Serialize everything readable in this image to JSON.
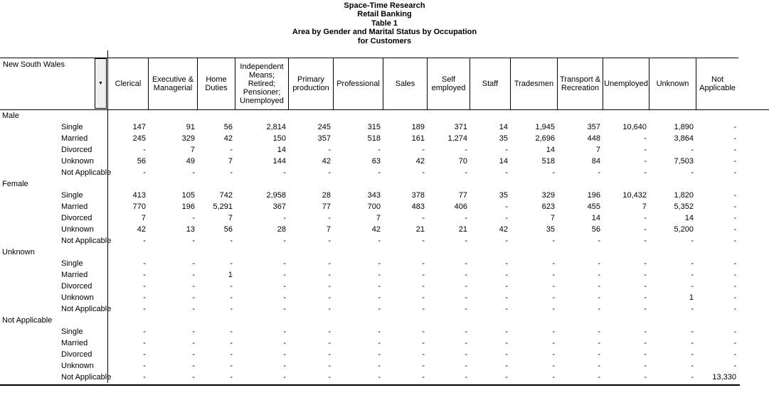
{
  "title": {
    "lines": [
      "Space-Time Research",
      "Retail Banking",
      "Table 1",
      "Area by Gender and Marital Status by Occupation",
      "for Customers"
    ]
  },
  "table": {
    "row_field_label": "New South Wales",
    "dropdown_glyph": "▼",
    "columns": [
      "Clerical",
      "Executive & Managerial",
      "Home Duties",
      "Independent Means; Retired; Pensioner; Unemployed",
      "Primary production",
      "Professional",
      "Sales",
      "Self employed",
      "Staff",
      "Tradesmen",
      "Transport & Recreation",
      "Unemployed",
      "Unknown",
      "Not Applicable"
    ],
    "groups": [
      {
        "label": "Male",
        "rows": [
          {
            "label": "Single",
            "values": [
              "147",
              "91",
              "56",
              "2,814",
              "245",
              "315",
              "189",
              "371",
              "14",
              "1,945",
              "357",
              "10,640",
              "1,890",
              "-"
            ]
          },
          {
            "label": "Married",
            "values": [
              "245",
              "329",
              "42",
              "150",
              "357",
              "518",
              "161",
              "1,274",
              "35",
              "2,696",
              "448",
              "-",
              "3,864",
              "-"
            ]
          },
          {
            "label": "Divorced",
            "values": [
              "-",
              "7",
              "-",
              "14",
              "-",
              "-",
              "-",
              "-",
              "-",
              "14",
              "7",
              "-",
              "-",
              "-"
            ]
          },
          {
            "label": "Unknown",
            "values": [
              "56",
              "49",
              "7",
              "144",
              "42",
              "63",
              "42",
              "70",
              "14",
              "518",
              "84",
              "-",
              "7,503",
              "-"
            ]
          },
          {
            "label": "Not Applicable",
            "values": [
              "-",
              "-",
              "-",
              "-",
              "-",
              "-",
              "-",
              "-",
              "-",
              "-",
              "-",
              "-",
              "-",
              "-"
            ]
          }
        ]
      },
      {
        "label": "Female",
        "rows": [
          {
            "label": "Single",
            "values": [
              "413",
              "105",
              "742",
              "2,958",
              "28",
              "343",
              "378",
              "77",
              "35",
              "329",
              "196",
              "10,432",
              "1,820",
              "-"
            ]
          },
          {
            "label": "Married",
            "values": [
              "770",
              "196",
              "5,291",
              "367",
              "77",
              "700",
              "483",
              "406",
              "-",
              "623",
              "455",
              "7",
              "5,352",
              "-"
            ]
          },
          {
            "label": "Divorced",
            "values": [
              "7",
              "-",
              "7",
              "-",
              "-",
              "7",
              "-",
              "-",
              "-",
              "7",
              "14",
              "-",
              "14",
              "-"
            ]
          },
          {
            "label": "Unknown",
            "values": [
              "42",
              "13",
              "56",
              "28",
              "7",
              "42",
              "21",
              "21",
              "42",
              "35",
              "56",
              "-",
              "5,200",
              "-"
            ]
          },
          {
            "label": "Not Applicable",
            "values": [
              "-",
              "-",
              "-",
              "-",
              "-",
              "-",
              "-",
              "-",
              "-",
              "-",
              "-",
              "-",
              "-",
              "-"
            ]
          }
        ]
      },
      {
        "label": "Unknown",
        "rows": [
          {
            "label": "Single",
            "values": [
              "-",
              "-",
              "-",
              "-",
              "-",
              "-",
              "-",
              "-",
              "-",
              "-",
              "-",
              "-",
              "-",
              "-"
            ]
          },
          {
            "label": "Married",
            "values": [
              "-",
              "-",
              "1",
              "-",
              "-",
              "-",
              "-",
              "-",
              "-",
              "-",
              "-",
              "-",
              "-",
              "-"
            ]
          },
          {
            "label": "Divorced",
            "values": [
              "-",
              "-",
              "-",
              "-",
              "-",
              "-",
              "-",
              "-",
              "-",
              "-",
              "-",
              "-",
              "-",
              "-"
            ]
          },
          {
            "label": "Unknown",
            "values": [
              "-",
              "-",
              "-",
              "-",
              "-",
              "-",
              "-",
              "-",
              "-",
              "-",
              "-",
              "-",
              "1",
              "-"
            ]
          },
          {
            "label": "Not Applicable",
            "values": [
              "-",
              "-",
              "-",
              "-",
              "-",
              "-",
              "-",
              "-",
              "-",
              "-",
              "-",
              "-",
              "-",
              "-"
            ]
          }
        ]
      },
      {
        "label": "Not Applicable",
        "rows": [
          {
            "label": "Single",
            "values": [
              "-",
              "-",
              "-",
              "-",
              "-",
              "-",
              "-",
              "-",
              "-",
              "-",
              "-",
              "-",
              "-",
              "-"
            ]
          },
          {
            "label": "Married",
            "values": [
              "-",
              "-",
              "-",
              "-",
              "-",
              "-",
              "-",
              "-",
              "-",
              "-",
              "-",
              "-",
              "-",
              "-"
            ]
          },
          {
            "label": "Divorced",
            "values": [
              "-",
              "-",
              "-",
              "-",
              "-",
              "-",
              "-",
              "-",
              "-",
              "-",
              "-",
              "-",
              "-",
              "-"
            ]
          },
          {
            "label": "Unknown",
            "values": [
              "-",
              "-",
              "-",
              "-",
              "-",
              "-",
              "-",
              "-",
              "-",
              "-",
              "-",
              "-",
              "-",
              "-"
            ]
          },
          {
            "label": "Not Applicable",
            "values": [
              "-",
              "-",
              "-",
              "-",
              "-",
              "-",
              "-",
              "-",
              "-",
              "-",
              "-",
              "-",
              "-",
              "13,330"
            ]
          }
        ]
      }
    ]
  },
  "colors": {
    "background": "#ffffff",
    "text": "#000000",
    "border": "#000000",
    "button_face": "#f0f0f0"
  }
}
